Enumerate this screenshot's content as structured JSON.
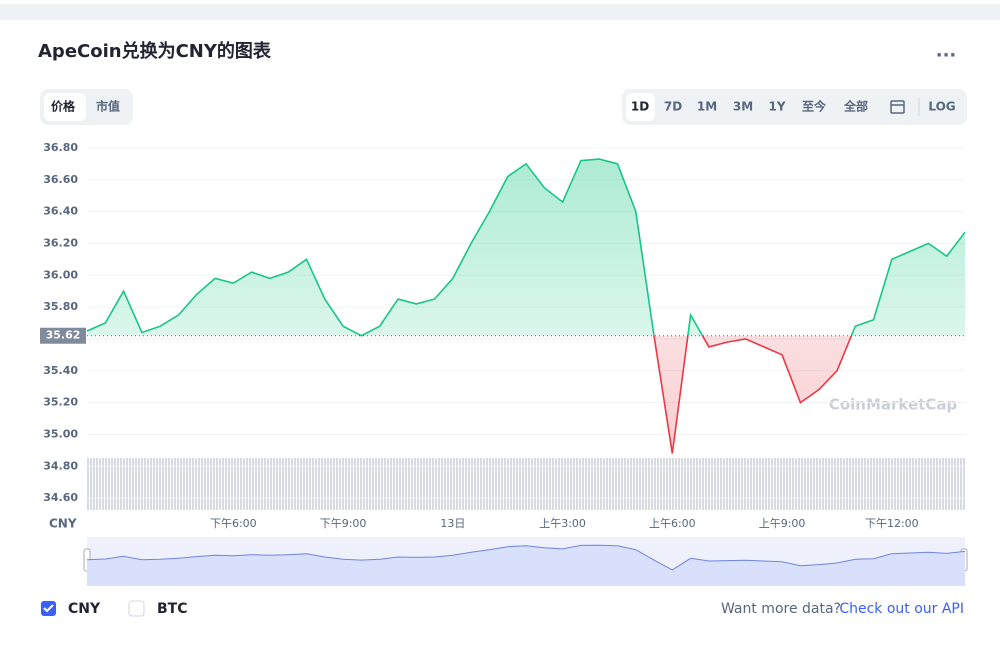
{
  "ui": {
    "title": "ApeCoin兑换为CNY的图表",
    "view_tabs": [
      "价格",
      "市值"
    ],
    "range_tabs": [
      "1D",
      "7D",
      "1M",
      "3M",
      "1Y",
      "至今",
      "全部"
    ],
    "log_button": "LOG",
    "other_currency": "BTC",
    "cta_text": "Want more data?",
    "cta_link": "Check out our API",
    "watermark": "CoinMarketCap"
  },
  "chart_data": {
    "type": "line",
    "y_label": "CNY",
    "categories": [
      null,
      null,
      null,
      null,
      null,
      null,
      null,
      null,
      "下午6:00",
      null,
      null,
      null,
      null,
      null,
      "下午9:00",
      null,
      null,
      null,
      null,
      null,
      "13日",
      null,
      null,
      null,
      null,
      null,
      "上午3:00",
      null,
      null,
      null,
      null,
      null,
      "上午6:00",
      null,
      null,
      null,
      null,
      null,
      "上午9:00",
      null,
      null,
      null,
      null,
      null,
      "下午12:00",
      null,
      null,
      null,
      null
    ],
    "series": [
      {
        "name": "CNY",
        "color": "#16c784",
        "down_color": "#ea3943",
        "values": [
          35.65,
          35.7,
          35.9,
          35.64,
          35.68,
          35.75,
          35.88,
          35.98,
          35.95,
          36.02,
          35.98,
          36.02,
          36.1,
          35.85,
          35.68,
          35.62,
          35.68,
          35.85,
          35.82,
          35.85,
          35.98,
          36.2,
          36.4,
          36.62,
          36.7,
          36.55,
          36.46,
          36.72,
          36.73,
          36.7,
          36.4,
          35.62,
          34.88,
          35.75,
          35.55,
          35.58,
          35.6,
          35.55,
          35.5,
          35.2,
          35.28,
          35.4,
          35.68,
          35.72,
          36.1,
          36.15,
          36.2,
          36.12,
          36.27
        ]
      }
    ],
    "reference": {
      "value": 35.62,
      "label": "35.62"
    },
    "ylim": [
      34.5,
      36.9
    ],
    "yticks": [
      {
        "value": 34.6,
        "label": "34.60"
      },
      {
        "value": 34.8,
        "label": "34.80"
      },
      {
        "value": 35.0,
        "label": "35.00"
      },
      {
        "value": 35.2,
        "label": "35.20"
      },
      {
        "value": 35.4,
        "label": "35.40"
      },
      {
        "value": 35.6,
        "label": "35.60"
      },
      {
        "value": 35.8,
        "label": "35.80"
      },
      {
        "value": 36.0,
        "label": "36.00"
      },
      {
        "value": 36.2,
        "label": "36.20"
      },
      {
        "value": 36.4,
        "label": "36.40"
      },
      {
        "value": 36.6,
        "label": "36.60"
      },
      {
        "value": 36.8,
        "label": "36.80"
      }
    ],
    "grid": true
  }
}
